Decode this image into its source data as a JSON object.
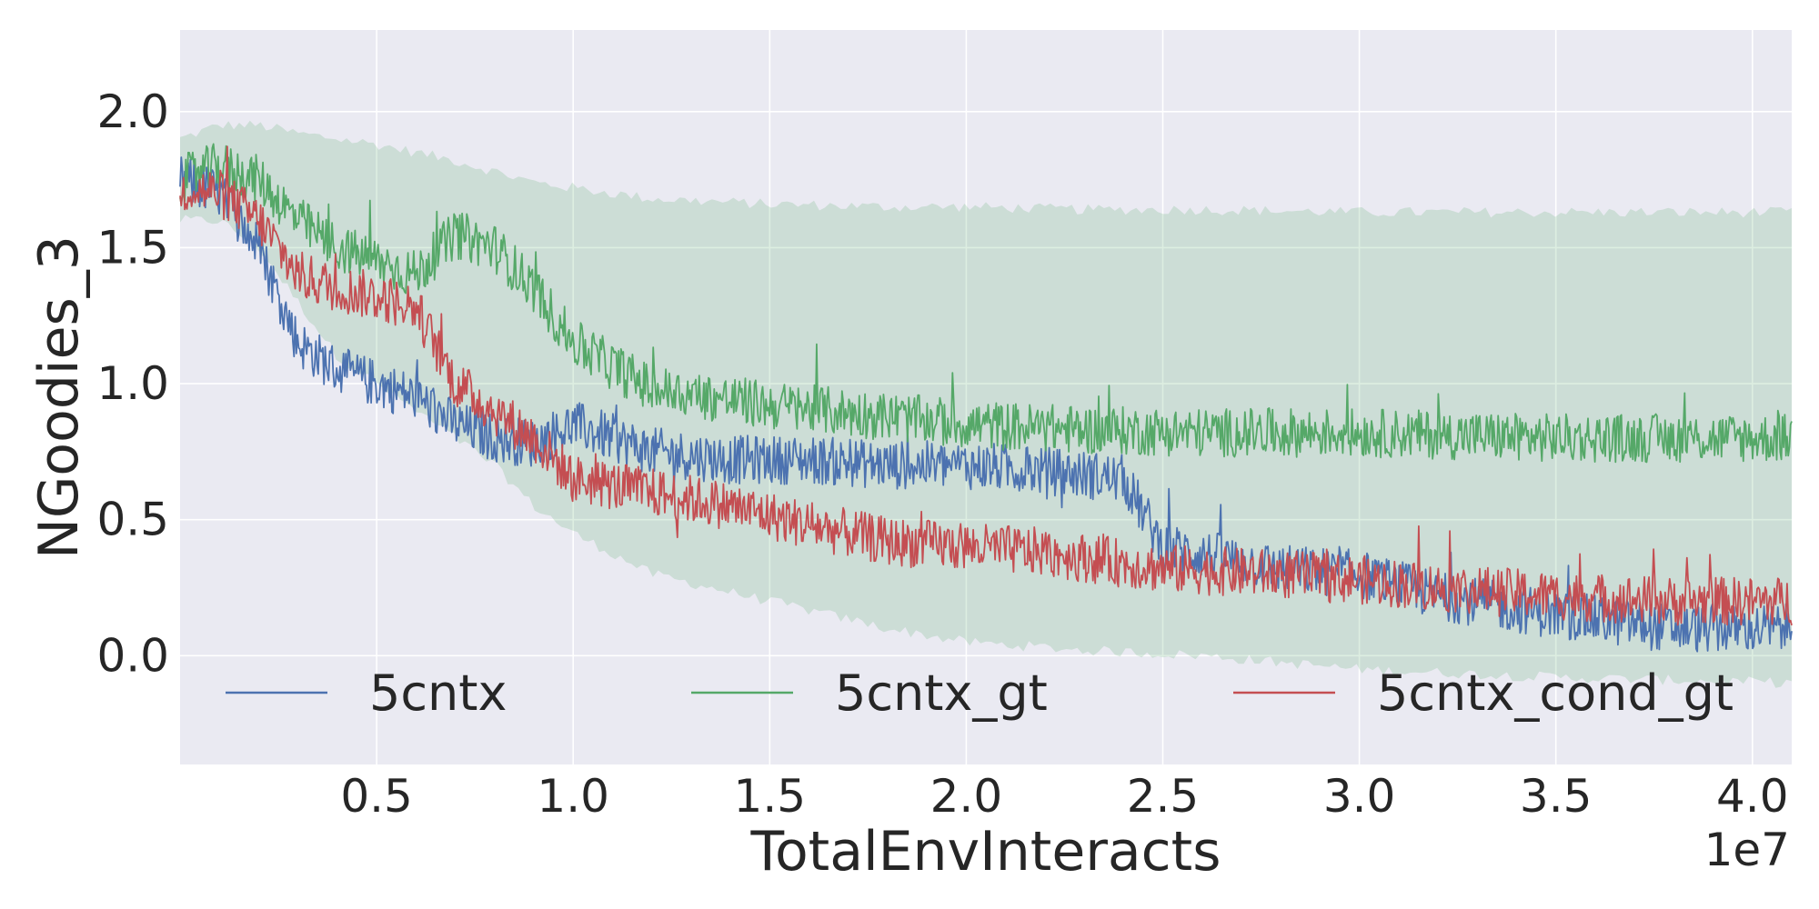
{
  "chart_data": {
    "type": "line",
    "xlabel": "TotalEnvInteracts",
    "ylabel": "NGoodies_3",
    "x_offset_label": "1e7",
    "xlim": [
      0.0,
      4.1
    ],
    "ylim": [
      -0.4,
      2.3
    ],
    "x_ticks": [
      0.5,
      1.0,
      1.5,
      2.0,
      2.5,
      3.0,
      3.5,
      4.0
    ],
    "x_tick_labels": [
      "0.5",
      "1.0",
      "1.5",
      "2.0",
      "2.5",
      "3.0",
      "3.5",
      "4.0"
    ],
    "y_ticks": [
      0.0,
      0.5,
      1.0,
      1.5,
      2.0
    ],
    "y_tick_labels": [
      "0.0",
      "0.5",
      "1.0",
      "1.5",
      "2.0"
    ],
    "grid": true,
    "legend_position": "bottom",
    "series": [
      {
        "name": "5cntx",
        "color": "#4c72b0",
        "x": [
          0.0,
          0.1,
          0.2,
          0.3,
          0.4,
          0.5,
          0.6,
          0.7,
          0.8,
          0.9,
          1.0,
          1.2,
          1.4,
          1.6,
          1.8,
          2.0,
          2.2,
          2.4,
          2.5,
          2.8,
          3.0,
          3.2,
          3.5,
          3.8,
          4.1
        ],
        "mean": [
          1.75,
          1.7,
          1.5,
          1.15,
          1.05,
          1.0,
          0.95,
          0.85,
          0.8,
          0.78,
          0.85,
          0.75,
          0.72,
          0.72,
          0.7,
          0.7,
          0.68,
          0.65,
          0.4,
          0.32,
          0.3,
          0.22,
          0.15,
          0.1,
          0.1
        ],
        "noise": 0.09
      },
      {
        "name": "5cntx_gt",
        "color": "#55a868",
        "x": [
          0.0,
          0.1,
          0.2,
          0.3,
          0.4,
          0.5,
          0.6,
          0.7,
          0.8,
          0.9,
          1.0,
          1.2,
          1.5,
          1.8,
          2.0,
          2.3,
          2.6,
          3.0,
          3.5,
          4.1
        ],
        "mean": [
          1.75,
          1.8,
          1.75,
          1.6,
          1.5,
          1.45,
          1.4,
          1.55,
          1.5,
          1.35,
          1.15,
          0.98,
          0.92,
          0.88,
          0.85,
          0.83,
          0.82,
          0.82,
          0.8,
          0.8
        ],
        "noise": 0.09,
        "band_upper": [
          1.9,
          1.95,
          1.95,
          1.92,
          1.9,
          1.88,
          1.85,
          1.82,
          1.78,
          1.74,
          1.72,
          1.68,
          1.66,
          1.65,
          1.65,
          1.64,
          1.64,
          1.63,
          1.63,
          1.63
        ],
        "band_lower": [
          1.6,
          1.6,
          1.5,
          1.3,
          1.1,
          1.0,
          0.9,
          0.8,
          0.7,
          0.55,
          0.45,
          0.3,
          0.2,
          0.1,
          0.05,
          0.02,
          0.0,
          -0.05,
          -0.08,
          -0.1
        ]
      },
      {
        "name": "5cntx_cond_gt",
        "color": "#c44e52",
        "x": [
          0.0,
          0.1,
          0.2,
          0.3,
          0.4,
          0.5,
          0.6,
          0.7,
          0.8,
          0.9,
          1.0,
          1.2,
          1.4,
          1.6,
          1.8,
          2.0,
          2.2,
          2.5,
          2.8,
          3.0,
          3.2,
          3.5,
          3.8,
          4.1
        ],
        "mean": [
          1.72,
          1.7,
          1.6,
          1.4,
          1.35,
          1.32,
          1.28,
          1.0,
          0.9,
          0.8,
          0.65,
          0.6,
          0.55,
          0.48,
          0.42,
          0.4,
          0.38,
          0.32,
          0.3,
          0.28,
          0.25,
          0.22,
          0.2,
          0.2
        ],
        "noise": 0.09
      }
    ]
  }
}
